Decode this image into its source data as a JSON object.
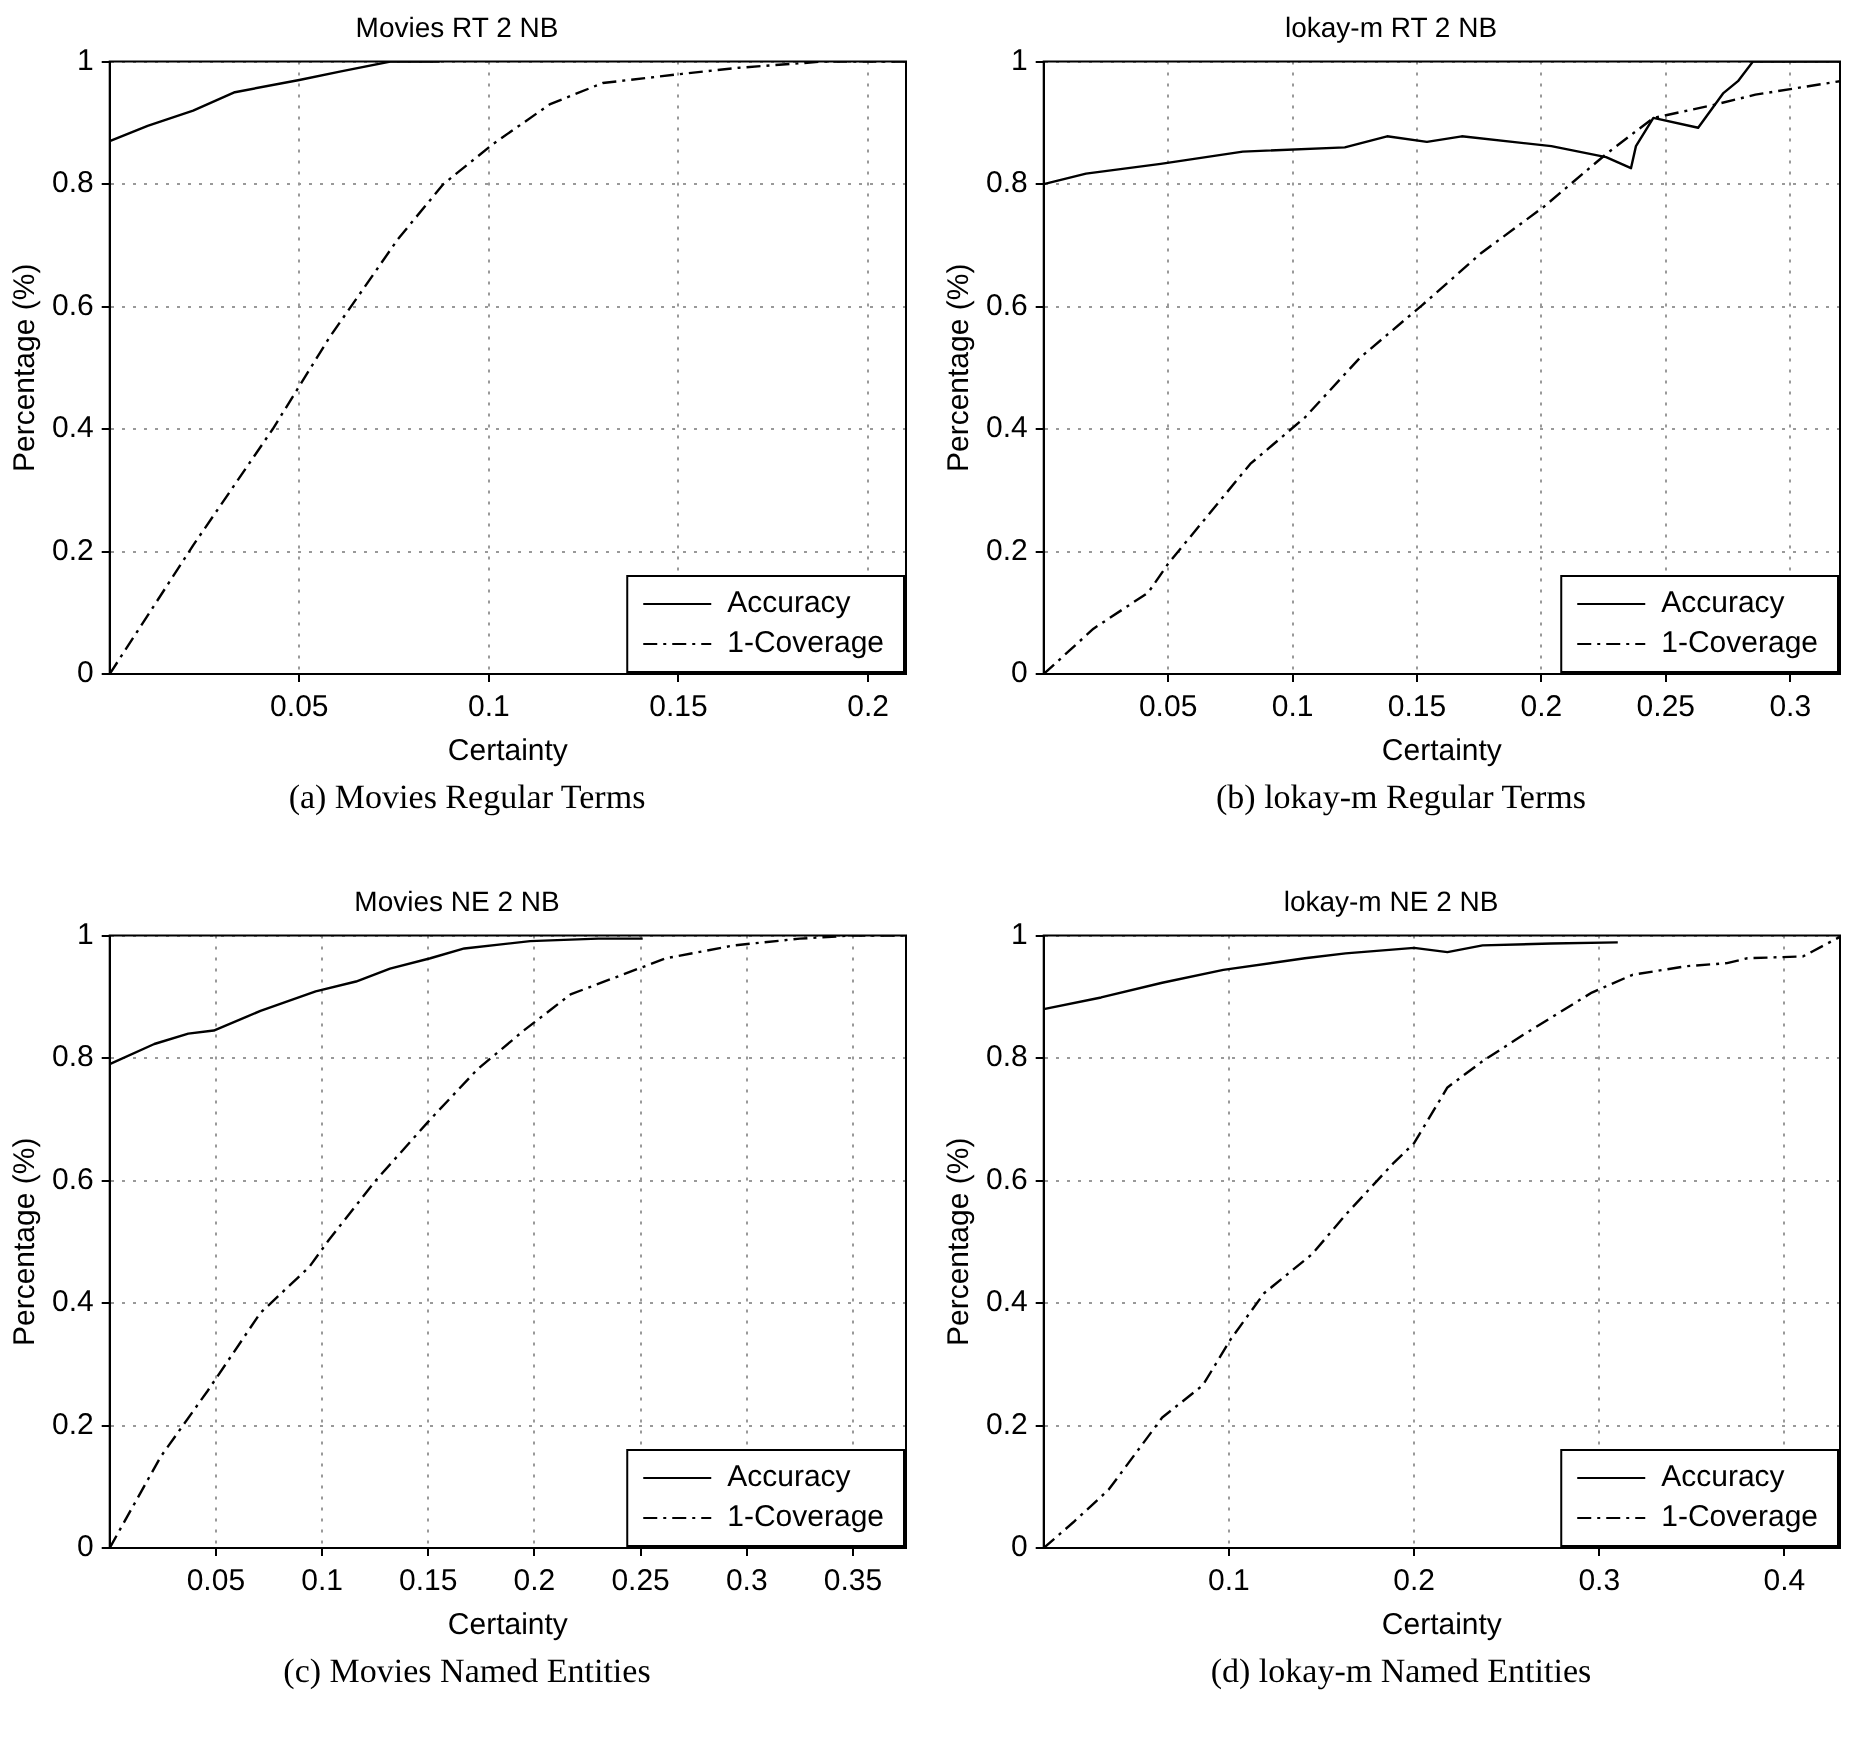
{
  "chart_data": [
    {
      "type": "line",
      "title": "Movies RT 2 NB",
      "xlabel": "Certainty",
      "ylabel": "Percentage (%)",
      "annotations": [
        "(a) Movies Regular Terms"
      ],
      "xlim": [
        0,
        0.21
      ],
      "xticks": [
        0.05,
        0.1,
        0.15,
        0.2
      ],
      "ylim": [
        0,
        1
      ],
      "yticks": [
        0,
        0.2,
        0.4,
        0.6,
        0.8,
        1
      ],
      "grid": true,
      "legend": "bottom right",
      "series": [
        {
          "name": "Accuracy",
          "color": "#000000",
          "line_style": "solid",
          "x": [
            0,
            0.01,
            0.022,
            0.033,
            0.05,
            0.061,
            0.074,
            0.087
          ],
          "values": [
            0.87,
            0.895,
            0.92,
            0.95,
            0.97,
            0.984,
            1.0,
            1.0
          ]
        },
        {
          "name": "1-Coverage",
          "color": "#000000",
          "line_style": "dashed",
          "x": [
            0,
            0.022,
            0.043,
            0.058,
            0.076,
            0.088,
            0.101,
            0.116,
            0.13,
            0.151,
            0.166,
            0.188,
            0.21
          ],
          "values": [
            0,
            0.21,
            0.4,
            0.55,
            0.71,
            0.8,
            0.865,
            0.93,
            0.965,
            0.98,
            0.99,
            1.0,
            1.0
          ]
        }
      ]
    },
    {
      "type": "line",
      "title": "lokay-m RT 2 NB",
      "xlabel": "Certainty",
      "ylabel": "Percentage (%)",
      "annotations": [
        "(b) lokay-m Regular Terms"
      ],
      "xlim": [
        0,
        0.32
      ],
      "xticks": [
        0.05,
        0.1,
        0.15,
        0.2,
        0.25,
        0.3
      ],
      "ylim": [
        0,
        1
      ],
      "yticks": [
        0,
        0.2,
        0.4,
        0.6,
        0.8,
        1
      ],
      "grid": true,
      "legend": "bottom right",
      "series": [
        {
          "name": "Accuracy",
          "color": "#000000",
          "line_style": "solid",
          "x": [
            0,
            0.017,
            0.047,
            0.08,
            0.121,
            0.138,
            0.154,
            0.168,
            0.204,
            0.226,
            0.236,
            0.238,
            0.245,
            0.263,
            0.273,
            0.279,
            0.285,
            0.32
          ],
          "values": [
            0.8,
            0.817,
            0.833,
            0.853,
            0.86,
            0.878,
            0.869,
            0.878,
            0.862,
            0.844,
            0.826,
            0.862,
            0.908,
            0.892,
            0.948,
            0.968,
            1.0,
            1.0
          ]
        },
        {
          "name": "1-Coverage",
          "color": "#000000",
          "line_style": "dashed",
          "x": [
            0,
            0.02,
            0.042,
            0.05,
            0.083,
            0.105,
            0.127,
            0.152,
            0.176,
            0.201,
            0.226,
            0.245,
            0.27,
            0.286,
            0.32
          ],
          "values": [
            0,
            0.074,
            0.133,
            0.18,
            0.343,
            0.419,
            0.516,
            0.602,
            0.688,
            0.763,
            0.849,
            0.908,
            0.93,
            0.946,
            0.968
          ]
        }
      ]
    },
    {
      "type": "line",
      "title": "Movies NE 2 NB",
      "xlabel": "Certainty",
      "ylabel": "Percentage (%)",
      "annotations": [
        "(c) Movies Named Entities"
      ],
      "xlim": [
        0,
        0.375
      ],
      "xticks": [
        0.05,
        0.1,
        0.15,
        0.2,
        0.25,
        0.3,
        0.35
      ],
      "ylim": [
        0,
        1
      ],
      "yticks": [
        0,
        0.2,
        0.4,
        0.6,
        0.8,
        1
      ],
      "grid": true,
      "legend": "bottom right",
      "series": [
        {
          "name": "Accuracy",
          "color": "#000000",
          "line_style": "solid",
          "x": [
            0,
            0.021,
            0.037,
            0.049,
            0.071,
            0.097,
            0.116,
            0.132,
            0.151,
            0.167,
            0.198,
            0.23,
            0.251
          ],
          "values": [
            0.79,
            0.823,
            0.84,
            0.845,
            0.877,
            0.909,
            0.925,
            0.946,
            0.963,
            0.979,
            0.991,
            0.995,
            0.995
          ]
        },
        {
          "name": "1-Coverage",
          "color": "#000000",
          "line_style": "dashed",
          "x": [
            0,
            0.024,
            0.046,
            0.071,
            0.094,
            0.103,
            0.125,
            0.151,
            0.173,
            0.195,
            0.217,
            0.249,
            0.262,
            0.294,
            0.325,
            0.349,
            0.375
          ],
          "values": [
            0,
            0.149,
            0.256,
            0.384,
            0.459,
            0.502,
            0.599,
            0.7,
            0.781,
            0.845,
            0.904,
            0.946,
            0.963,
            0.984,
            0.995,
            1.0,
            1.0
          ]
        }
      ]
    },
    {
      "type": "line",
      "title": "lokay-m NE 2 NB",
      "xlabel": "Certainty",
      "ylabel": "Percentage (%)",
      "annotations": [
        "(d) lokay-m Named Entities"
      ],
      "xlim": [
        0,
        0.43
      ],
      "xticks": [
        0.1,
        0.2,
        0.3,
        0.4
      ],
      "ylim": [
        0,
        1
      ],
      "yticks": [
        0,
        0.2,
        0.4,
        0.6,
        0.8,
        1
      ],
      "grid": true,
      "legend": "bottom right",
      "series": [
        {
          "name": "Accuracy",
          "color": "#000000",
          "line_style": "solid",
          "x": [
            0,
            0.031,
            0.064,
            0.097,
            0.141,
            0.163,
            0.2,
            0.218,
            0.237,
            0.274,
            0.31
          ],
          "values": [
            0.88,
            0.899,
            0.923,
            0.944,
            0.963,
            0.971,
            0.98,
            0.973,
            0.984,
            0.987,
            0.989
          ]
        },
        {
          "name": "1-Coverage",
          "color": "#000000",
          "line_style": "dashed",
          "x": [
            0,
            0.016,
            0.035,
            0.064,
            0.086,
            0.101,
            0.119,
            0.145,
            0.163,
            0.189,
            0.2,
            0.218,
            0.237,
            0.259,
            0.296,
            0.318,
            0.347,
            0.369,
            0.38,
            0.41,
            0.43
          ],
          "values": [
            0,
            0.042,
            0.095,
            0.213,
            0.266,
            0.341,
            0.416,
            0.48,
            0.544,
            0.629,
            0.661,
            0.752,
            0.795,
            0.838,
            0.907,
            0.936,
            0.95,
            0.955,
            0.963,
            0.966,
            0.998
          ]
        }
      ]
    }
  ]
}
